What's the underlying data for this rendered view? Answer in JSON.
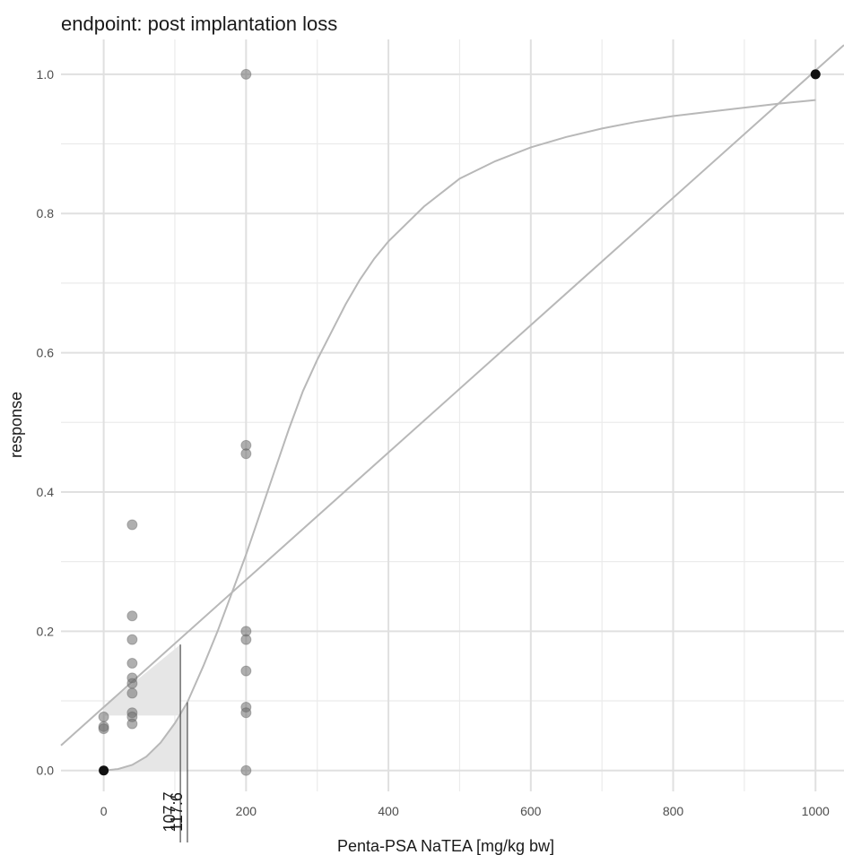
{
  "chart_data": {
    "type": "scatter",
    "title": "endpoint: post implantation loss",
    "xlabel": "Penta-PSA NaTEA [mg/kg bw]",
    "ylabel": "response",
    "xlim": [
      -60,
      1040
    ],
    "ylim": [
      -0.03,
      1.05
    ],
    "x_ticks": [
      0,
      200,
      400,
      600,
      800,
      1000
    ],
    "x_tick_labels": [
      "0",
      "200",
      "400",
      "600",
      "800",
      "1000"
    ],
    "y_ticks": [
      0.0,
      0.2,
      0.4,
      0.6,
      0.8,
      1.0
    ],
    "y_tick_labels": [
      "0.0",
      "0.2",
      "0.4",
      "0.6",
      "0.8",
      "1.0"
    ],
    "grid": true,
    "points": [
      {
        "x": 0,
        "y": 0.077
      },
      {
        "x": 0,
        "y": 0.063
      },
      {
        "x": 0,
        "y": 0.06
      },
      {
        "x": 40,
        "y": 0.353
      },
      {
        "x": 40,
        "y": 0.222
      },
      {
        "x": 40,
        "y": 0.188
      },
      {
        "x": 40,
        "y": 0.154
      },
      {
        "x": 40,
        "y": 0.133
      },
      {
        "x": 40,
        "y": 0.125
      },
      {
        "x": 40,
        "y": 0.111
      },
      {
        "x": 40,
        "y": 0.083
      },
      {
        "x": 40,
        "y": 0.077
      },
      {
        "x": 40,
        "y": 0.067
      },
      {
        "x": 200,
        "y": 1.0
      },
      {
        "x": 200,
        "y": 0.467
      },
      {
        "x": 200,
        "y": 0.455
      },
      {
        "x": 200,
        "y": 0.2
      },
      {
        "x": 200,
        "y": 0.188
      },
      {
        "x": 200,
        "y": 0.143
      },
      {
        "x": 200,
        "y": 0.091
      },
      {
        "x": 200,
        "y": 0.083
      },
      {
        "x": 200,
        "y": 0.0
      }
    ],
    "highlight_points": [
      {
        "x": 0,
        "y": 0.0
      },
      {
        "x": 1000,
        "y": 1.0
      }
    ],
    "linear_fit": {
      "from": [
        -60,
        0.036
      ],
      "to": [
        1040,
        1.042
      ]
    },
    "sigmoid_fit": {
      "x": [
        0,
        20,
        40,
        60,
        80,
        100,
        117.6,
        140,
        160,
        180,
        200,
        220,
        240,
        260,
        280,
        300,
        320,
        340,
        360,
        380,
        400,
        450,
        500,
        550,
        600,
        650,
        700,
        750,
        800,
        850,
        900,
        950,
        1000
      ],
      "y": [
        0.0,
        0.002,
        0.008,
        0.02,
        0.04,
        0.068,
        0.098,
        0.15,
        0.2,
        0.255,
        0.31,
        0.37,
        0.43,
        0.49,
        0.545,
        0.59,
        0.63,
        0.67,
        0.705,
        0.735,
        0.76,
        0.81,
        0.85,
        0.875,
        0.895,
        0.91,
        0.922,
        0.932,
        0.94,
        0.946,
        0.952,
        0.958,
        0.963
      ]
    },
    "bmd": [
      {
        "label": "107.7",
        "x": 107.7,
        "y_top": 0.181,
        "y_base": 0.079
      },
      {
        "label": "117.6",
        "x": 117.6,
        "y_top": 0.098,
        "y_base": 0.0
      }
    ]
  }
}
